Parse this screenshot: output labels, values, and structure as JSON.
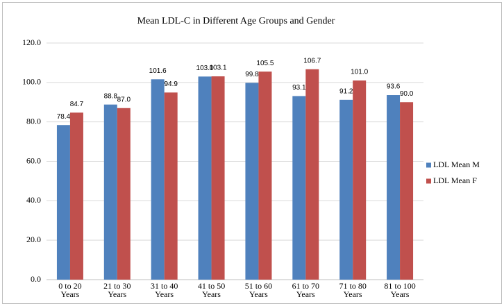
{
  "chart_data": {
    "type": "bar",
    "title": "Mean LDL-C in Different Age Groups and Gender",
    "categories": [
      "0 to 20 Years",
      "21 to 30 Years",
      "31 to 40 Years",
      "41 to 50 Years",
      "51 to 60 Years",
      "61 to 70 Years",
      "71 to 80 Years",
      "81 to 100 Years"
    ],
    "series": [
      {
        "name": "LDL Mean M",
        "color": "#4f81bd",
        "values": [
          78.4,
          88.8,
          101.6,
          103.0,
          99.8,
          93.1,
          91.2,
          93.6
        ],
        "value_labels": [
          "78.4",
          "88.8",
          "101.6",
          "103.0",
          "99.8",
          "93.1",
          "91.2",
          "93.6"
        ]
      },
      {
        "name": "LDL Mean F",
        "color": "#c0504d",
        "values": [
          84.7,
          87.0,
          94.9,
          103.1,
          105.5,
          106.7,
          101.0,
          90.0
        ],
        "value_labels": [
          "84.7",
          "87.0",
          "94.9",
          "103.1",
          "105.5",
          "106.7",
          "101.0",
          "90.0"
        ]
      }
    ],
    "ylim": [
      0,
      120
    ],
    "yticks": [
      {
        "value": 0,
        "label": "0.0"
      },
      {
        "value": 20,
        "label": "20.0"
      },
      {
        "value": 40,
        "label": "40.0"
      },
      {
        "value": 60,
        "label": "60.0"
      },
      {
        "value": 80,
        "label": "80.0"
      },
      {
        "value": 100,
        "label": "100.0"
      },
      {
        "value": 120,
        "label": "120.0"
      }
    ],
    "grid": true,
    "legend": "right"
  }
}
